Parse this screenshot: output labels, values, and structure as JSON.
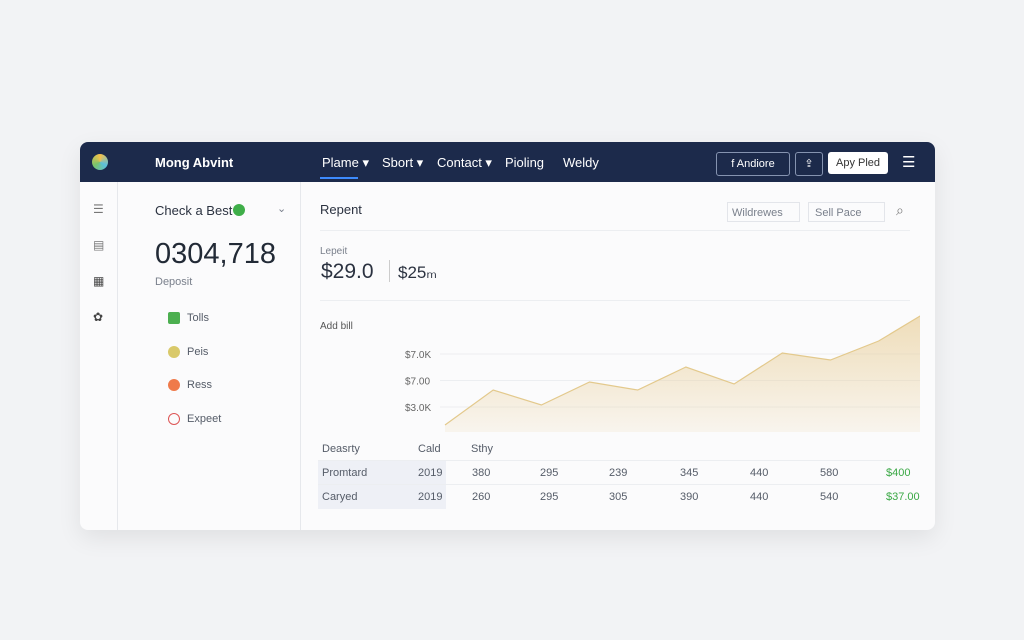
{
  "navbar": {
    "brand": "Mong Abvint",
    "menu": [
      "Plame ▾",
      "Sbort ▾",
      "Contact ▾",
      "Pioling",
      "Weldy"
    ],
    "buttons": [
      "f  Andiore",
      "Apy Pled"
    ]
  },
  "sidebar": {
    "header": "Check a Best",
    "big_number": "0304,718",
    "caption": "Deposit",
    "items": [
      "Tolls",
      "Peis",
      "Ress",
      "Expeet"
    ]
  },
  "report": {
    "title": "Repent",
    "inputs": [
      "Wildrewes",
      "Sell Pace"
    ],
    "kpi_label": "Lepeit",
    "kpi_main": "$29.0",
    "kpi_secondary": "$25ₘ",
    "chart": {
      "type": "area",
      "label": "Add bill",
      "y_labels": [
        "$7.0K",
        "$7.00",
        "$3.0K"
      ],
      "ylim": [
        0,
        150
      ],
      "color": "#e9cf9a",
      "values": [
        7,
        42,
        27,
        50,
        42,
        65,
        48,
        79,
        72,
        91,
        120,
        143
      ]
    },
    "table": {
      "header": [
        "Deasrty",
        "Cald",
        "Sthy"
      ],
      "rows": [
        [
          "Promtard",
          "2019",
          "380",
          "295",
          "239",
          "345",
          "440",
          "580",
          "$400"
        ],
        [
          "Caryed",
          "2019",
          "260",
          "295",
          "305",
          "390",
          "440",
          "540",
          "$37.00"
        ]
      ]
    }
  }
}
